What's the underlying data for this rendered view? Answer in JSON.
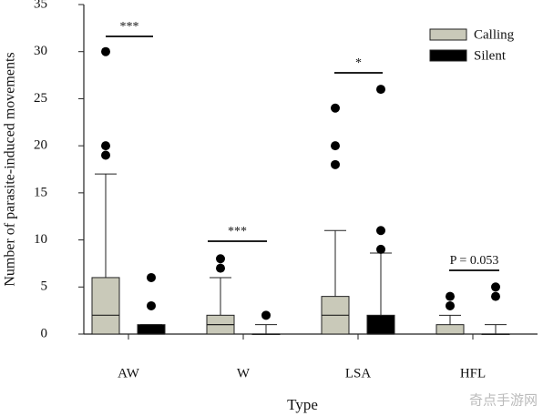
{
  "chart_data": {
    "type": "box",
    "x_label": "Type",
    "y_label": "Number of  parasite-induced movements",
    "categories": [
      "AW",
      "W",
      "LSA",
      "HFL"
    ],
    "ylim": [
      0,
      35
    ],
    "yticks": [
      0,
      5,
      10,
      15,
      20,
      25,
      30,
      35
    ],
    "legend": "upper right",
    "series": [
      {
        "name": "Calling",
        "color": "#c9c9b9",
        "whisker_low": [
          0,
          0,
          0,
          0
        ],
        "q1": [
          0,
          0,
          0,
          0
        ],
        "median": [
          2,
          1,
          2,
          0
        ],
        "q3": [
          6,
          2,
          4,
          1
        ],
        "whisker_high": [
          17,
          6,
          11,
          2
        ],
        "outliers": [
          [
            19,
            20,
            30
          ],
          [
            7,
            8
          ],
          [
            18,
            20,
            24
          ],
          [
            3,
            4
          ]
        ]
      },
      {
        "name": "Silent",
        "color": "#000000",
        "whisker_low": [
          0,
          0,
          0,
          0
        ],
        "q1": [
          0,
          0,
          0,
          0
        ],
        "median": [
          0,
          0,
          0,
          0
        ],
        "q3": [
          1,
          0,
          2,
          0
        ],
        "whisker_high": [
          1,
          1,
          8.6,
          1
        ],
        "outliers": [
          [
            3,
            6
          ],
          [
            2
          ],
          [
            9,
            11,
            26
          ],
          [
            4,
            5
          ]
        ]
      }
    ],
    "annotations": [
      "***",
      "***",
      "*",
      "P = 0.053"
    ],
    "watermark": "奇点手游网"
  }
}
